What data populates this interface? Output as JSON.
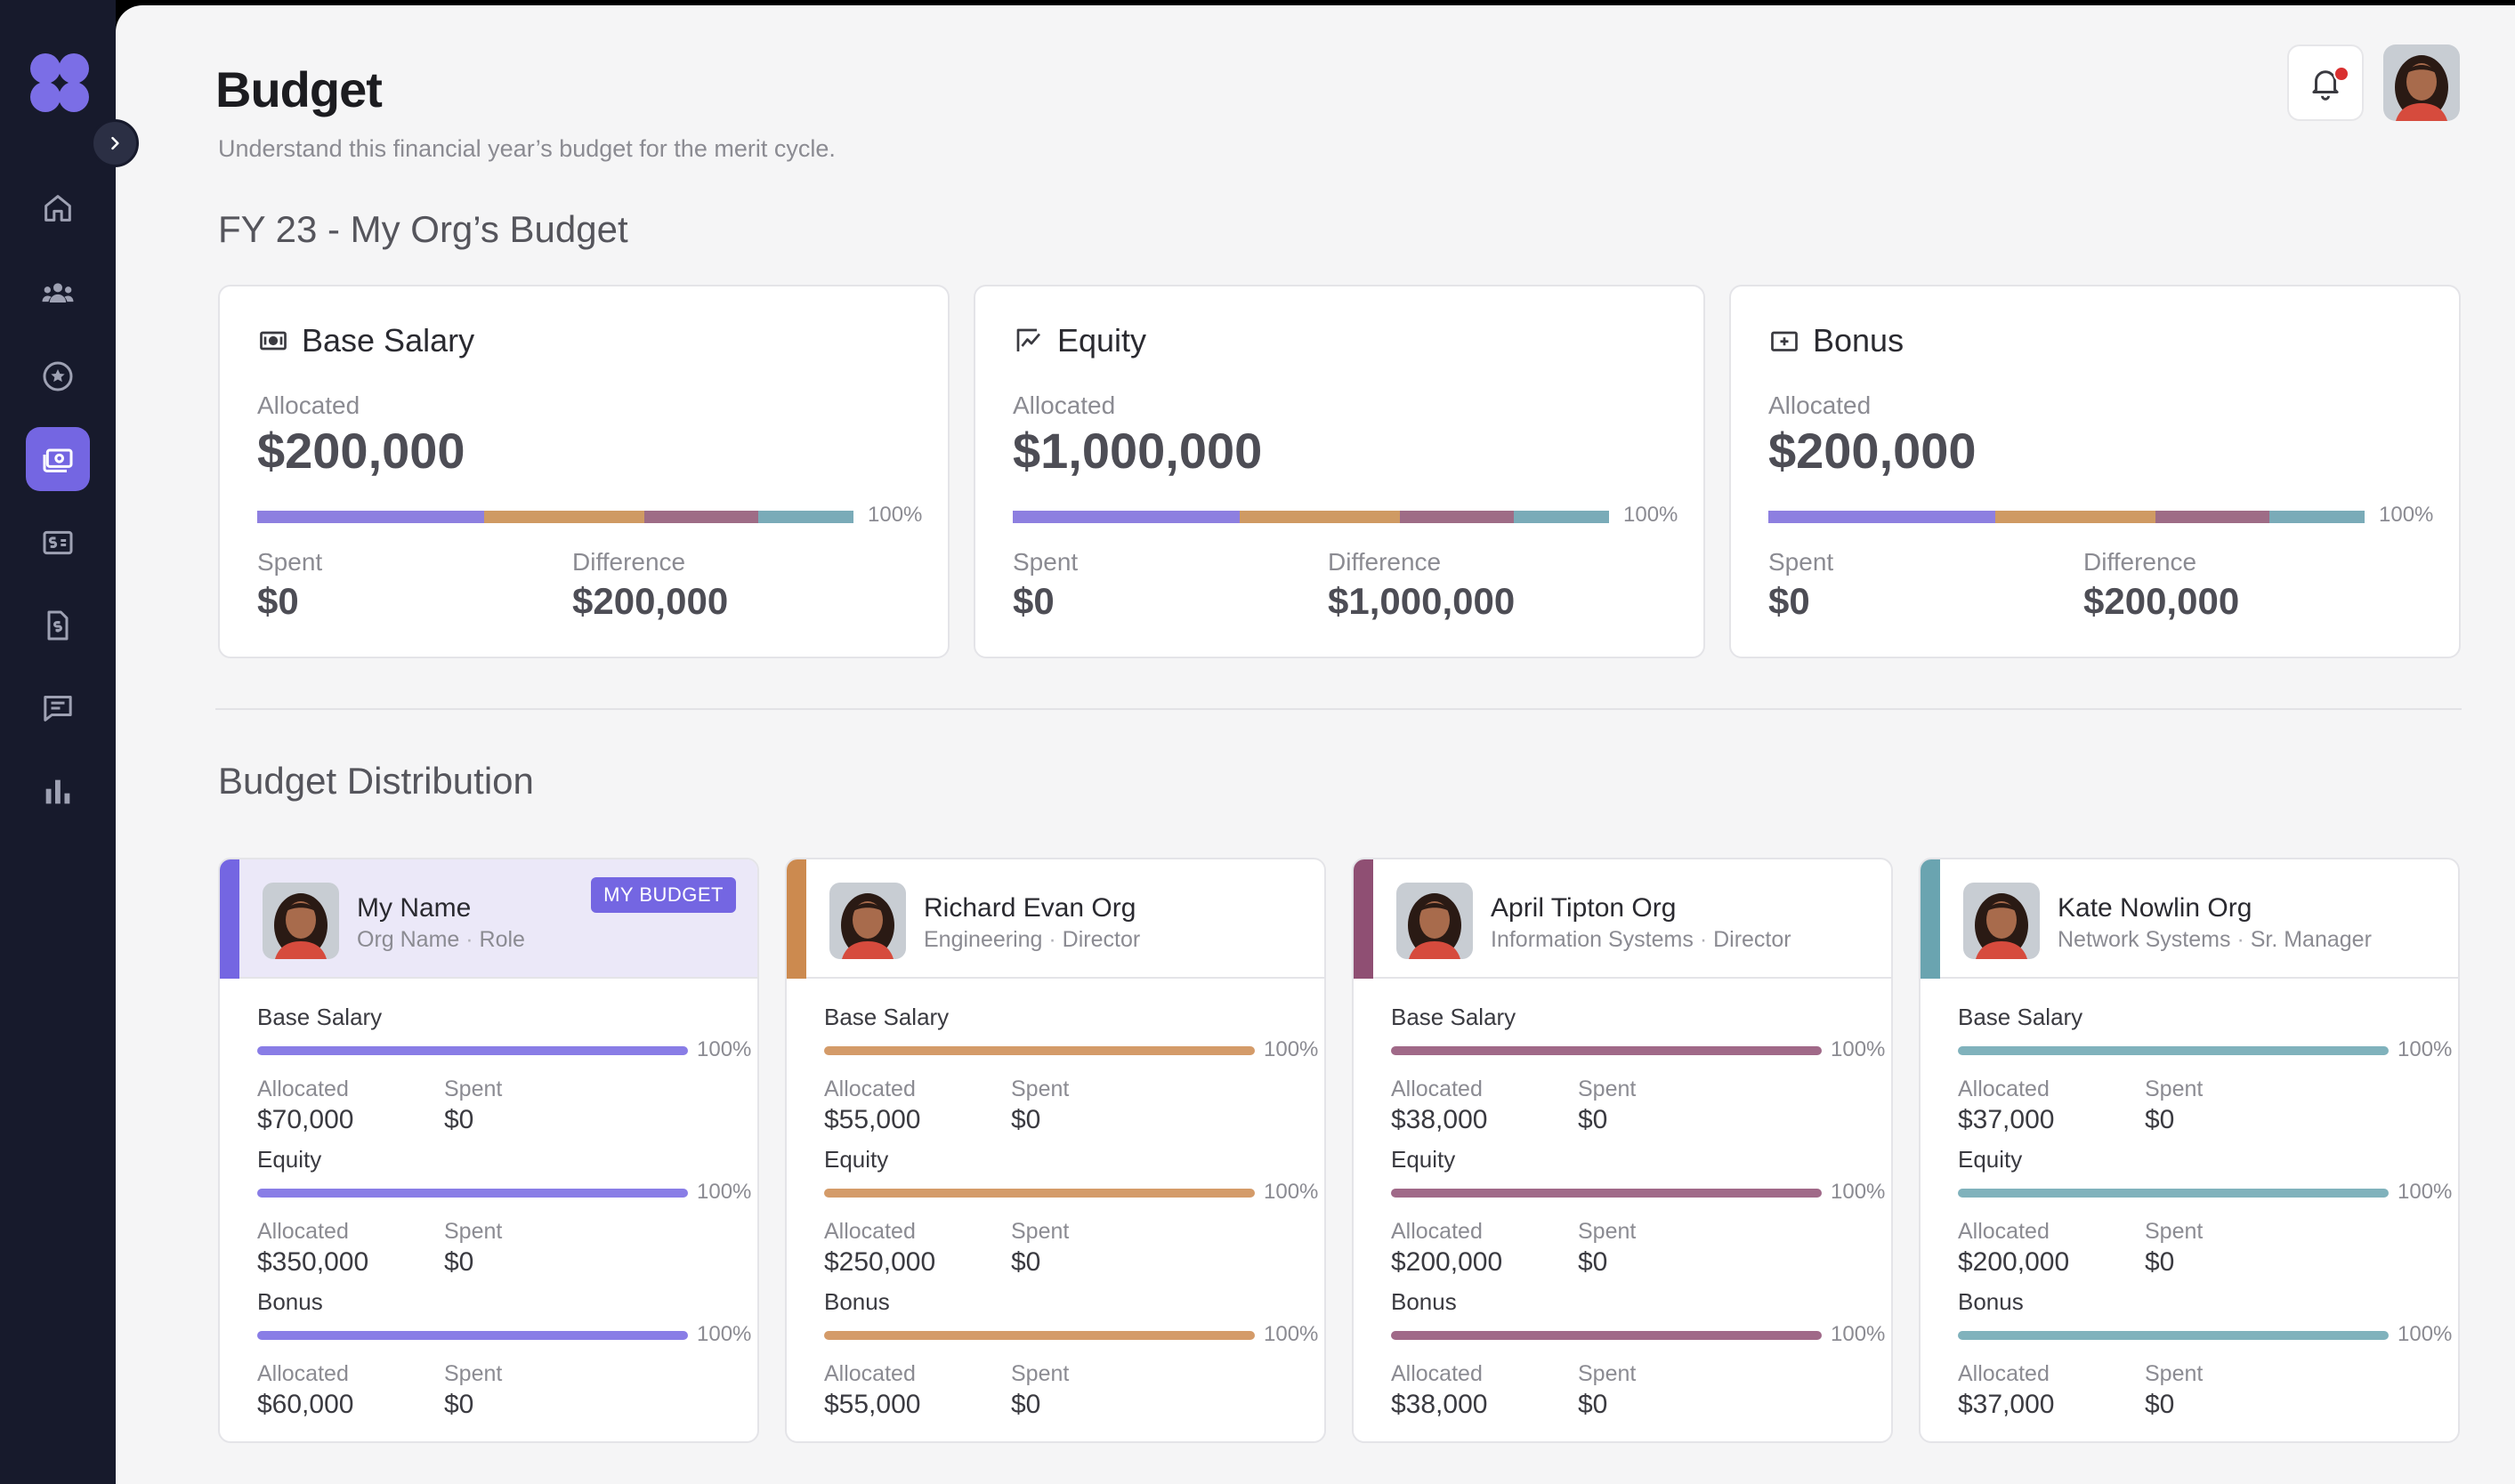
{
  "header": {
    "title": "Budget",
    "subtitle": "Understand this financial year’s budget for the merit cycle."
  },
  "icons": {
    "nav": [
      "home-icon",
      "team-icon",
      "star-icon",
      "money-icon",
      "dollar-card-icon",
      "document-dollar-icon",
      "chat-icon",
      "bar-chart-icon"
    ],
    "active_nav": "money-icon",
    "notification": "bell-icon"
  },
  "colors": {
    "accent": "#7466e2",
    "segment_purple": "#8d7fe0",
    "segment_orange": "#cf9a63",
    "segment_plum": "#9e6c86",
    "segment_teal": "#7aabb8"
  },
  "summary": {
    "title": "FY 23 - My Org’s Budget",
    "cards": [
      {
        "name": "Base Salary",
        "icon": "cash-icon",
        "allocated_label": "Allocated",
        "allocated": "$200,000",
        "percent": "100%",
        "spent_label": "Spent",
        "spent": "$0",
        "difference_label": "Difference",
        "difference": "$200,000"
      },
      {
        "name": "Equity",
        "icon": "chart-line-icon",
        "allocated_label": "Allocated",
        "allocated": "$1,000,000",
        "percent": "100%",
        "spent_label": "Spent",
        "spent": "$0",
        "difference_label": "Difference",
        "difference": "$1,000,000"
      },
      {
        "name": "Bonus",
        "icon": "plus-ticket-icon",
        "allocated_label": "Allocated",
        "allocated": "$200,000",
        "percent": "100%",
        "spent_label": "Spent",
        "spent": "$0",
        "difference_label": "Difference",
        "difference": "$200,000"
      }
    ]
  },
  "distribution": {
    "title": "Budget Distribution",
    "cards": [
      {
        "name": "My Name",
        "org": "Org Name",
        "role": "Role",
        "badge": "MY BUDGET",
        "color": "#7466e2",
        "sections": [
          {
            "label": "Base Salary",
            "percent": "100%",
            "allocated_label": "Allocated",
            "allocated": "$70,000",
            "spent_label": "Spent",
            "spent": "$0"
          },
          {
            "label": "Equity",
            "percent": "100%",
            "allocated_label": "Allocated",
            "allocated": "$350,000",
            "spent_label": "Spent",
            "spent": "$0"
          },
          {
            "label": "Bonus",
            "percent": "100%",
            "allocated_label": "Allocated",
            "allocated": "$60,000",
            "spent_label": "Spent",
            "spent": "$0"
          }
        ]
      },
      {
        "name": "Richard Evan Org",
        "org": "Engineering",
        "role": "Director",
        "color": "#cc8a4f",
        "sections": [
          {
            "label": "Base Salary",
            "percent": "100%",
            "allocated_label": "Allocated",
            "allocated": "$55,000",
            "spent_label": "Spent",
            "spent": "$0"
          },
          {
            "label": "Equity",
            "percent": "100%",
            "allocated_label": "Allocated",
            "allocated": "$250,000",
            "spent_label": "Spent",
            "spent": "$0"
          },
          {
            "label": "Bonus",
            "percent": "100%",
            "allocated_label": "Allocated",
            "allocated": "$55,000",
            "spent_label": "Spent",
            "spent": "$0"
          }
        ]
      },
      {
        "name": "April Tipton Org",
        "org": "Information Systems",
        "role": "Director",
        "color": "#8f4f73",
        "sections": [
          {
            "label": "Base Salary",
            "percent": "100%",
            "allocated_label": "Allocated",
            "allocated": "$38,000",
            "spent_label": "Spent",
            "spent": "$0"
          },
          {
            "label": "Equity",
            "percent": "100%",
            "allocated_label": "Allocated",
            "allocated": "$200,000",
            "spent_label": "Spent",
            "spent": "$0"
          },
          {
            "label": "Bonus",
            "percent": "100%",
            "allocated_label": "Allocated",
            "allocated": "$38,000",
            "spent_label": "Spent",
            "spent": "$0"
          }
        ]
      },
      {
        "name": "Kate Nowlin Org",
        "org": "Network Systems",
        "role": "Sr. Manager",
        "color": "#6aa4b0",
        "sections": [
          {
            "label": "Base Salary",
            "percent": "100%",
            "allocated_label": "Allocated",
            "allocated": "$37,000",
            "spent_label": "Spent",
            "spent": "$0"
          },
          {
            "label": "Equity",
            "percent": "100%",
            "allocated_label": "Allocated",
            "allocated": "$200,000",
            "spent_label": "Spent",
            "spent": "$0"
          },
          {
            "label": "Bonus",
            "percent": "100%",
            "allocated_label": "Allocated",
            "allocated": "$37,000",
            "spent_label": "Spent",
            "spent": "$0"
          }
        ]
      }
    ]
  }
}
